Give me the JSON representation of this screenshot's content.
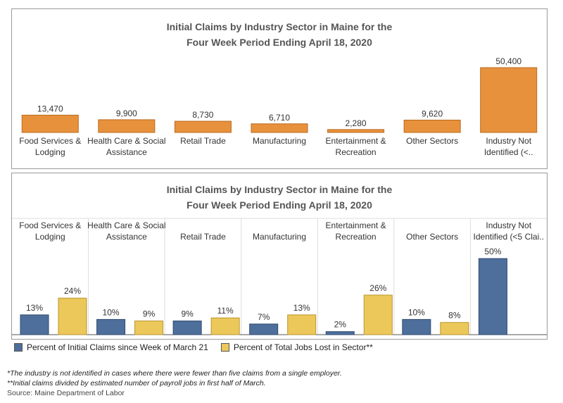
{
  "colors": {
    "orange": "#e8913c",
    "orange_stroke": "#b86a1e",
    "blue": "#4e6f9b",
    "blue_stroke": "#2f4a70",
    "yellow": "#ecc85a",
    "yellow_stroke": "#b8952e"
  },
  "chart_data": [
    {
      "type": "bar",
      "title_line1": "Initial Claims by Industry Sector in Maine for the",
      "title_line2": "Four Week Period Ending April 18, 2020",
      "categories": [
        [
          "Food Services &",
          "Lodging"
        ],
        [
          "Health Care & Social",
          "Assistance"
        ],
        [
          "Retail Trade"
        ],
        [
          "Manufacturing"
        ],
        [
          "Entertainment &",
          "Recreation"
        ],
        [
          "Other Sectors"
        ],
        [
          "Industry Not",
          "Identified (<.."
        ]
      ],
      "values": [
        13470,
        9900,
        8730,
        6710,
        2280,
        9620,
        50400
      ],
      "value_labels": [
        "13,470",
        "9,900",
        "8,730",
        "6,710",
        "2,280",
        "9,620",
        "50,400"
      ],
      "ylim": [
        0,
        50400
      ],
      "grid": false
    },
    {
      "type": "bar",
      "title_line1": "Initial Claims by Industry Sector in Maine for the",
      "title_line2": "Four Week Period Ending April 18, 2020",
      "categories": [
        [
          "Food Services &",
          "Lodging"
        ],
        [
          "Health Care & Social",
          "Assistance"
        ],
        [
          "Retail Trade"
        ],
        [
          "Manufacturing"
        ],
        [
          "Entertainment &",
          "Recreation"
        ],
        [
          "Other Sectors"
        ],
        [
          "Industry Not",
          "Identified (<5 Clai.."
        ]
      ],
      "series": [
        {
          "name": "Percent of Initial Claims since Week of March 21",
          "values": [
            13,
            10,
            9,
            7,
            2,
            10,
            50
          ],
          "labels": [
            "13%",
            "10%",
            "9%",
            "7%",
            "2%",
            "10%",
            "50%"
          ]
        },
        {
          "name": "Percent of Total Jobs Lost in Sector**",
          "values": [
            24,
            9,
            11,
            13,
            26,
            8,
            null
          ],
          "labels": [
            "24%",
            "9%",
            "11%",
            "13%",
            "26%",
            "8%",
            ""
          ]
        }
      ],
      "ylim": [
        0,
        50
      ],
      "grid": false,
      "legend": "bottom-left"
    }
  ],
  "footnotes": {
    "note1": "*The industry is not identified in cases where there were fewer than five claims from a single employer.",
    "note2": "**Initial claims divided by estimated number of payroll jobs in first half of March.",
    "source": "Source: Maine Department of Labor"
  }
}
